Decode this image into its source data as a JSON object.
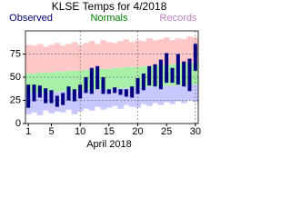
{
  "chart_data": {
    "type": "range-bar",
    "title": "KLSE Temps for 4/2018",
    "x_label": "April 2018",
    "x": [
      1,
      2,
      3,
      4,
      5,
      6,
      7,
      8,
      9,
      10,
      11,
      12,
      13,
      14,
      15,
      16,
      17,
      18,
      19,
      20,
      21,
      22,
      23,
      24,
      25,
      26,
      27,
      28,
      29,
      30
    ],
    "xlim": [
      0.5,
      30.5
    ],
    "xticks": [
      1,
      5,
      10,
      15,
      20,
      25,
      30
    ],
    "xgrid": [
      10,
      20,
      30
    ],
    "ylim": [
      0,
      100
    ],
    "yticks": [
      0,
      25,
      50,
      75
    ],
    "grid": true,
    "series": [
      {
        "name": "Observed",
        "color": "#000080",
        "low": [
          17,
          24,
          28,
          22,
          22,
          18,
          20,
          25,
          24,
          27,
          33,
          32,
          37,
          32,
          32,
          33,
          31,
          29,
          28,
          32,
          36,
          41,
          40,
          37,
          44,
          44,
          42,
          40,
          35,
          57
        ],
        "high": [
          42,
          42,
          41,
          38,
          36,
          30,
          33,
          40,
          37,
          42,
          50,
          60,
          62,
          50,
          37,
          39,
          37,
          37,
          40,
          49,
          54,
          62,
          64,
          69,
          76,
          60,
          75,
          67,
          70,
          86
        ]
      },
      {
        "name": "Normals",
        "color": "#008000",
        "band_color": "#a8f0a8",
        "low": [
          33,
          33,
          33,
          34,
          34,
          34,
          35,
          35,
          35,
          36,
          36,
          36,
          37,
          37,
          37,
          38,
          38,
          38,
          39,
          39,
          39,
          40,
          40,
          40,
          41,
          41,
          41,
          42,
          42,
          42
        ],
        "high": [
          54,
          54,
          55,
          55,
          55,
          56,
          56,
          57,
          57,
          57,
          58,
          58,
          59,
          59,
          59,
          60,
          60,
          61,
          61,
          61,
          62,
          62,
          63,
          63,
          63,
          64,
          64,
          65,
          65,
          65
        ]
      },
      {
        "name": "Records",
        "color": "#c080c0",
        "high_color": "#ffc8c8",
        "low_color": "#c8c8ff",
        "low": [
          10,
          12,
          9,
          14,
          11,
          13,
          12,
          15,
          10,
          13,
          16,
          14,
          18,
          15,
          17,
          19,
          16,
          20,
          18,
          17,
          21,
          19,
          22,
          20,
          23,
          21,
          24,
          22,
          25,
          23
        ],
        "high": [
          85,
          84,
          86,
          83,
          85,
          87,
          84,
          86,
          88,
          85,
          87,
          89,
          86,
          90,
          88,
          87,
          89,
          91,
          88,
          90,
          89,
          92,
          90,
          91,
          93,
          90,
          92,
          91,
          94,
          93
        ]
      }
    ]
  }
}
